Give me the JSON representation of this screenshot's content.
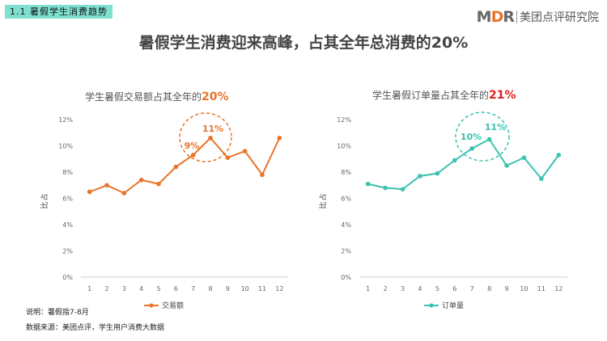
{
  "section_tag": "1.1  暑假学生消费趋势",
  "logo": {
    "mark_m": "M",
    "mark_d": "D",
    "mark_r": "R",
    "text": "美团点评研究院"
  },
  "main_title": "暑假学生消费迎来高峰，占其全年总消费的20%",
  "colors": {
    "left": "#e8742a",
    "right": "#3cc2b0",
    "highlight_red": "#e02020",
    "axis": "#cccccc"
  },
  "charts": [
    {
      "title_prefix": "学生暑假交易额占其全年的",
      "title_highlight": "20%",
      "ylabel": "占比",
      "legend": "交易额",
      "annotations": [
        "9%",
        "11%"
      ]
    },
    {
      "title_prefix": "学生暑假订单量占其全年的",
      "title_highlight": "21%",
      "ylabel": "占比",
      "legend": "订单量",
      "annotations": [
        "10%",
        "11%"
      ]
    }
  ],
  "chart_data": [
    {
      "type": "line",
      "title": "学生暑假交易额占其全年的20%",
      "ylabel": "占比",
      "x": [
        1,
        2,
        3,
        4,
        5,
        6,
        7,
        8,
        9,
        10,
        11,
        12
      ],
      "y_ticks": [
        "0%",
        "2%",
        "4%",
        "6%",
        "8%",
        "10%",
        "12%"
      ],
      "ylim": [
        0,
        12
      ],
      "series": [
        {
          "name": "交易额",
          "values": [
            6.5,
            7.0,
            6.4,
            7.4,
            7.1,
            8.4,
            9.3,
            10.6,
            9.1,
            9.6,
            7.8,
            10.6
          ]
        }
      ],
      "legend_position": "bottom-center",
      "grid": false
    },
    {
      "type": "line",
      "title": "学生暑假订单量占其全年的21%",
      "ylabel": "占比",
      "x": [
        1,
        2,
        3,
        4,
        5,
        6,
        7,
        8,
        9,
        10,
        11,
        12
      ],
      "y_ticks": [
        "0%",
        "2%",
        "4%",
        "6%",
        "8%",
        "10%",
        "12%"
      ],
      "ylim": [
        0,
        12
      ],
      "series": [
        {
          "name": "订单量",
          "values": [
            7.1,
            6.8,
            6.7,
            7.7,
            7.9,
            8.9,
            9.8,
            10.5,
            8.5,
            9.1,
            7.5,
            9.3
          ]
        }
      ],
      "legend_position": "bottom-center",
      "grid": false
    }
  ],
  "notes": {
    "note": "说明：暑假指7-8月",
    "source": "数据来源：美团点评，学生用户消费大数据"
  }
}
